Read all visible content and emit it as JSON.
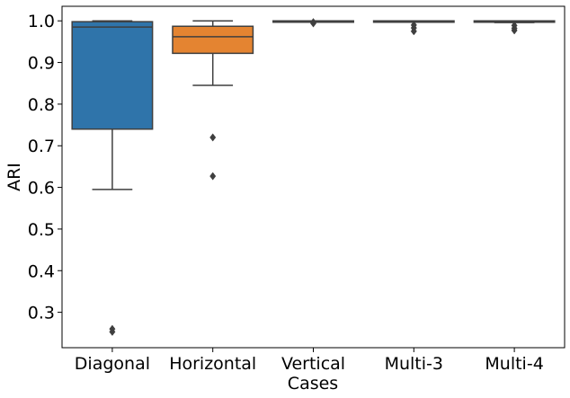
{
  "chart_data": {
    "type": "box",
    "xlabel": "Cases",
    "ylabel": "ARI",
    "ylim": [
      0.215,
      1.035
    ],
    "yticks": [
      "0.3",
      "0.4",
      "0.5",
      "0.6",
      "0.7",
      "0.8",
      "0.9",
      "1.0"
    ],
    "categories": [
      "Diagonal",
      "Horizontal",
      "Vertical",
      "Multi-3",
      "Multi-4"
    ],
    "grid": false,
    "series": [
      {
        "category": "Diagonal",
        "color": "#2f74aa",
        "whisker_low": 0.595,
        "q1": 0.74,
        "median": 0.985,
        "q3": 0.998,
        "whisker_high": 1.0,
        "outliers": [
          0.26,
          0.253
        ]
      },
      {
        "category": "Horizontal",
        "color": "#e48431",
        "whisker_low": 0.845,
        "q1": 0.922,
        "median": 0.962,
        "q3": 0.987,
        "whisker_high": 1.0,
        "outliers": [
          0.72,
          0.627
        ]
      },
      {
        "category": "Vertical",
        "color": "#3e9b3e",
        "whisker_low": 1.0,
        "q1": 1.0,
        "median": 1.0,
        "q3": 1.0,
        "whisker_high": 1.0,
        "outliers": [
          0.997,
          0.994
        ]
      },
      {
        "category": "Multi-3",
        "color": "#c03d3e",
        "whisker_low": 1.0,
        "q1": 1.0,
        "median": 1.0,
        "q3": 1.0,
        "whisker_high": 1.0,
        "outliers": [
          0.99,
          0.983,
          0.975
        ]
      },
      {
        "category": "Multi-4",
        "color": "#8c6bb2",
        "whisker_low": 0.996,
        "q1": 0.997,
        "median": 0.999,
        "q3": 1.0,
        "whisker_high": 1.0,
        "outliers": [
          0.989,
          0.982,
          0.977
        ]
      }
    ]
  }
}
